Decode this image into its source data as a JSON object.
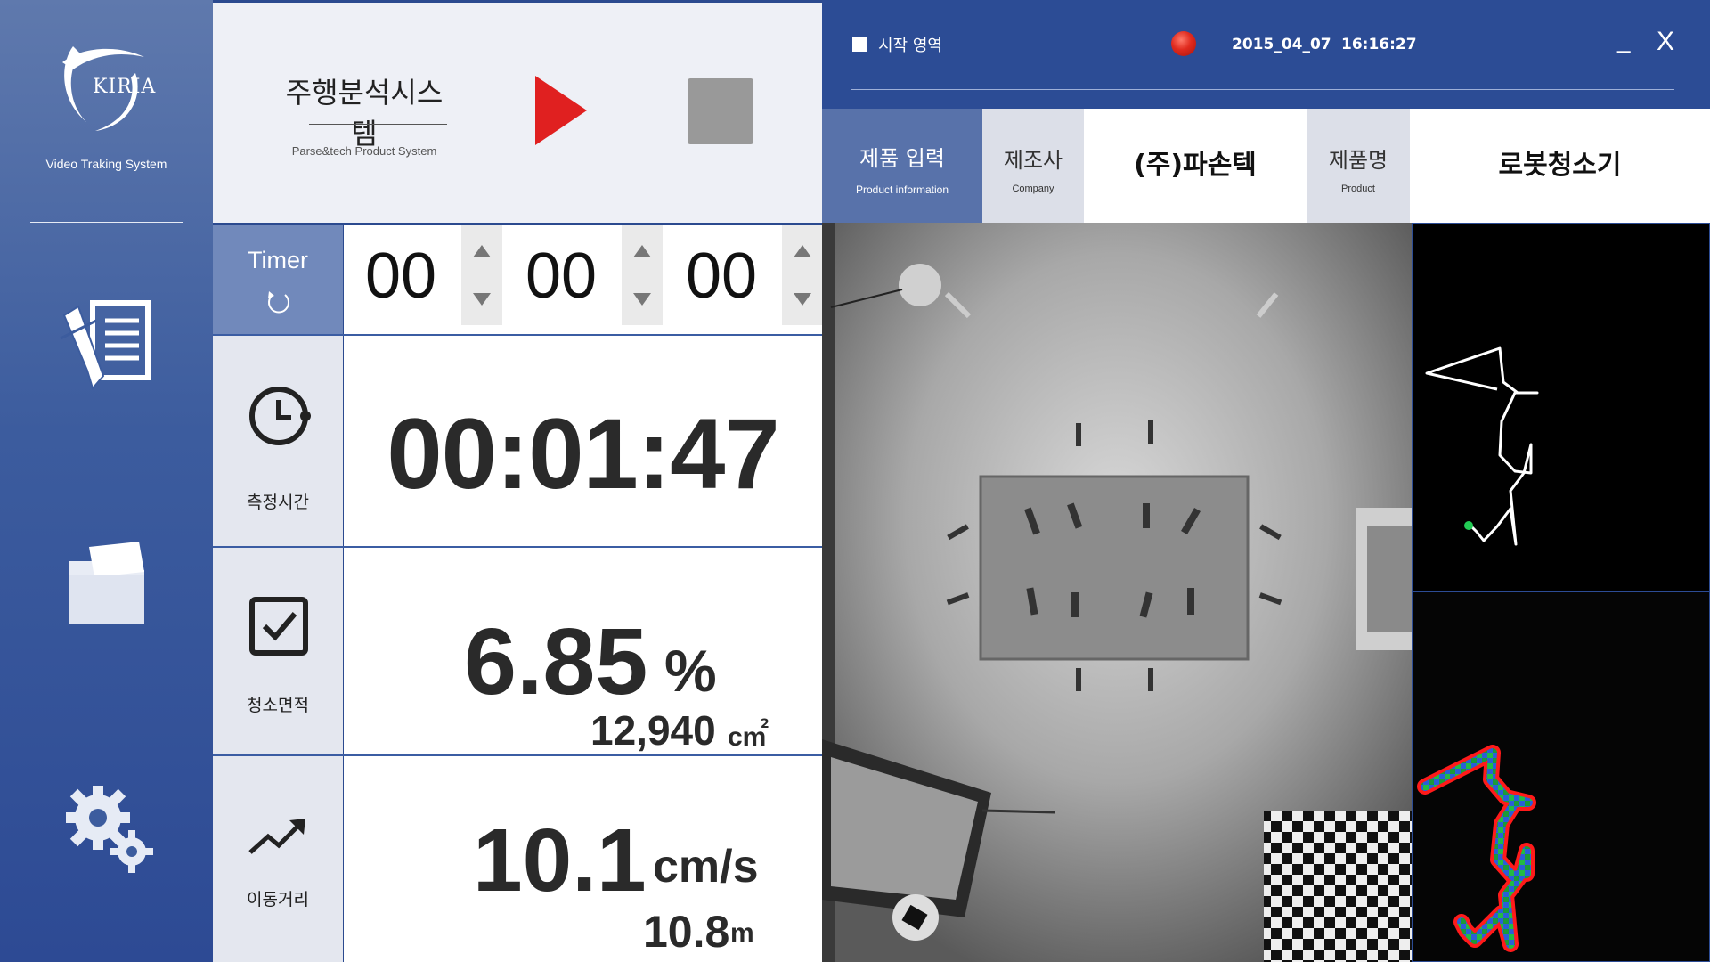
{
  "sidebar": {
    "logo_text": "KIRIA",
    "subtitle": "Video Traking System",
    "nav": [
      {
        "icon": "document-edit-icon"
      },
      {
        "icon": "folder-icon"
      },
      {
        "icon": "gears-icon"
      }
    ]
  },
  "header": {
    "title": "주행분석시스템",
    "subtitle": "Parse&tech Product System",
    "play_icon": "play-icon",
    "stop_icon": "stop-icon"
  },
  "timer": {
    "label": "Timer",
    "hours": "00",
    "minutes": "00",
    "seconds": "00"
  },
  "metrics": {
    "time": {
      "label": "측정시간",
      "value": "00:01:47"
    },
    "area": {
      "label": "청소면적",
      "percent": "6.85",
      "percent_unit": "%",
      "area_value": "12,940",
      "area_unit": "cm",
      "area_sup": "2"
    },
    "speed": {
      "label": "이동거리",
      "speed_value": "10.1",
      "speed_unit": "cm/s",
      "distance_value": "10.8",
      "distance_unit": "m"
    }
  },
  "top_bar": {
    "start_area_label": "시작 영역",
    "date": "2015_04_07",
    "time": "16:16:27",
    "minimize": "_",
    "close": "X"
  },
  "product": {
    "tab_label": "제품 입력",
    "tab_sub": "Product information",
    "company_label": "제조사",
    "company_sub": "Company",
    "company_value": "(주)파손텍",
    "product_label": "제품명",
    "product_sub": "Product",
    "product_value": "로봇청소기"
  },
  "colors": {
    "primary": "#2c4c95",
    "accent_red": "#e02a1e",
    "stop_gray": "#999999",
    "track_green": "#22cc55"
  }
}
